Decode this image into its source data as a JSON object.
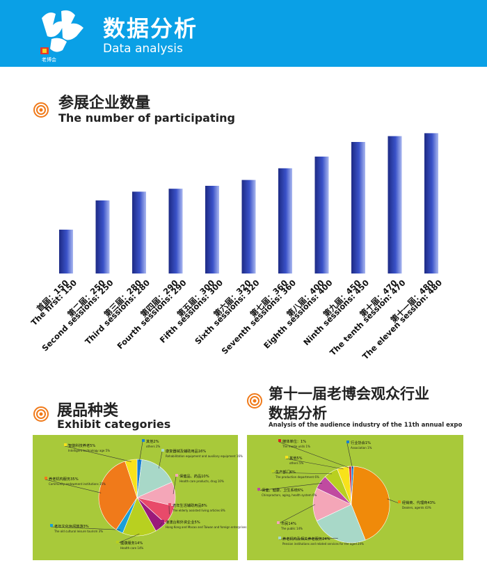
{
  "header": {
    "title": "数据分析",
    "subtitle": "Data analysis",
    "logo_small": "老博会"
  },
  "colors": {
    "header_bg": "#0aa0e6",
    "accent_orange": "#f07a1a",
    "panel_green": "#a8c93a",
    "bar_dark": "#1d2a85"
  },
  "section1": {
    "title_cn": "参展企业数量",
    "title_en": "The number of participating"
  },
  "section2": {
    "title_cn": "展品种类",
    "title_en": "Exhibit categories"
  },
  "section3": {
    "title_cn_1": "第十一届老博会观众行业",
    "title_cn_2": "数据分析",
    "title_en": "Analysis of the audience industry of the 11th annual expo"
  },
  "chart_data": [
    {
      "type": "bar",
      "categories": [
        "首届：150 The first: 150",
        "第二届：250 Second sessions: 250",
        "第三届：280 Third sessions: 280",
        "第四届：290 Fourth sessions: 290",
        "第五届：300 Fifth sessions: 300",
        "第六届：320 Sixth sessions: 320",
        "第七届：360 Seventh sessions: 360",
        "第八届：400 Eighth sessions: 400",
        "第九届：450 Ninth sessions: 450",
        "第十届：470 The tenth session: 470",
        "第十一届：480 The eleven session: 480"
      ],
      "values": [
        150,
        250,
        280,
        290,
        300,
        320,
        360,
        400,
        450,
        470,
        480
      ],
      "labels_cn": [
        "首届：150",
        "第二届：250",
        "第三届：280",
        "第四届：290",
        "第五届：300",
        "第六届：320",
        "第七届：360",
        "第八届：400",
        "第九届：450",
        "第十届：470",
        "第十一届：480"
      ],
      "labels_en": [
        "The first: 150",
        "Second sessions: 250",
        "Third sessions: 280",
        "Fourth sessions: 290",
        "Fifth sessions: 300",
        "Sixth sessions: 320",
        "Seventh sessions: 360",
        "Eighth sessions: 400",
        "Ninth sessions: 450",
        "The tenth session: 470",
        "The eleven session: 480"
      ],
      "ylim": [
        0,
        500
      ],
      "grid": false
    },
    {
      "type": "pie",
      "slices": [
        {
          "cn": "其他2%",
          "en": "others 2%",
          "value": 2,
          "color": "#1a7fd4"
        },
        {
          "cn": "康复器械及辅助用品16%",
          "en": "Rehabilitation equipment and auxiliary equipment 16%",
          "value": 16,
          "color": "#a8d8c8"
        },
        {
          "cn": "保健品、药品10%",
          "en": "Health care products, drug 10%",
          "value": 10,
          "color": "#f4a6b8"
        },
        {
          "cn": "老年生活辅助用品8%",
          "en": "The elderly assisted living articles 8%",
          "value": 8,
          "color": "#e84a6a"
        },
        {
          "cn": "港澳台和外资企业5%",
          "en": "Hong Kong and Macao and Taiwan and foreign enterprises 5%",
          "value": 5,
          "color": "#9a1a7a"
        },
        {
          "cn": "健康服务14%",
          "en": "Health care 14%",
          "value": 14,
          "color": "#b8d020"
        },
        {
          "cn": "老年文化休闲旅游3%",
          "en": "The old cultural leisure tourism 3%",
          "value": 3,
          "color": "#1a9fd8"
        },
        {
          "cn": "养老机构服务35%",
          "en": "Community endowment institutions 35%",
          "value": 35,
          "color": "#f07a1a"
        },
        {
          "cn": "智能科技养老5%",
          "en": "Intelligent technology age 5%",
          "value": 5,
          "color": "#f8e21a"
        }
      ]
    },
    {
      "type": "pie",
      "slices": [
        {
          "cn": "行业协会1%",
          "en": "Association 1%",
          "value": 1,
          "color": "#1a7fd4"
        },
        {
          "cn": "经销商、代理商43%",
          "en": "Dealers, agents 43%",
          "value": 43,
          "color": "#f08a0a"
        },
        {
          "cn": "养老机构及相关养老服务24%",
          "en": "Pension institutions and related services for the aged 24%",
          "value": 24,
          "color": "#a8d8c8"
        },
        {
          "cn": "市民14%",
          "en": "The public 14%",
          "value": 14,
          "color": "#f4a6b8"
        },
        {
          "cn": "保健、健康、卫生系统6%",
          "en": "Chiropractors, aging, health system 6%",
          "value": 6,
          "color": "#c04aa0"
        },
        {
          "cn": "生产部门6%",
          "en": "The production department 6%",
          "value": 6,
          "color": "#b8d020"
        },
        {
          "cn": "其他5%",
          "en": "others 5%",
          "value": 5,
          "color": "#f8e21a"
        },
        {
          "cn": "媒体单位：1%",
          "en": "The media units 1%",
          "value": 1,
          "color": "#e02020"
        }
      ]
    }
  ]
}
